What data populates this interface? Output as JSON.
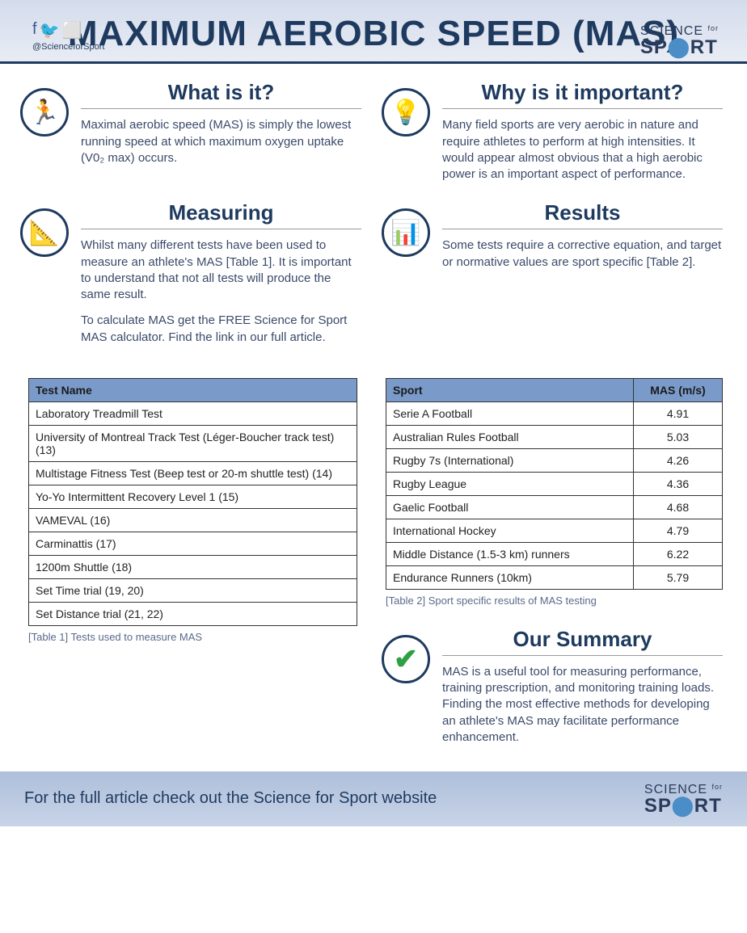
{
  "header": {
    "title": "MAXIMUM AEROBIC SPEED (MAS)",
    "handle": "@ScienceforSport",
    "logo_top": "SCIENCE",
    "logo_for": "for",
    "logo_bottom_1": "SP",
    "logo_bottom_2": "RT"
  },
  "sections": {
    "what": {
      "title": "What is it?",
      "body": "Maximal aerobic speed (MAS) is simply the lowest running speed at which maximum oxygen uptake (V0₂ max) occurs."
    },
    "why": {
      "title": "Why is it important?",
      "body": "Many field sports are very aerobic in nature and require athletes to perform at high intensities. It would appear almost obvious that a high aerobic power is an important aspect of performance."
    },
    "measuring": {
      "title": "Measuring",
      "body1": "Whilst many different tests have been used to measure an athlete's MAS [Table 1]. It is important to understand that not all tests will produce the same result.",
      "body2": "To calculate MAS get the FREE Science for Sport MAS calculator. Find the link in our full article."
    },
    "results": {
      "title": "Results",
      "body": "Some tests require a corrective equation, and target or normative values are sport specific [Table 2]."
    },
    "summary": {
      "title": "Our Summary",
      "body": "MAS is a useful tool for measuring performance, training prescription, and monitoring training loads. Finding the most effective methods for developing an athlete's MAS may facilitate performance enhancement."
    }
  },
  "table1": {
    "header": "Test Name",
    "rows": [
      "Laboratory Treadmill Test",
      "University of Montreal Track Test (Léger-Boucher track test) (13)",
      "Multistage Fitness Test (Beep test or 20-m shuttle test) (14)",
      "Yo-Yo Intermittent Recovery Level 1 (15)",
      "VAMEVAL (16)",
      "Carminattis (17)",
      "1200m Shuttle (18)",
      "Set Time trial (19, 20)",
      "Set Distance trial (21, 22)"
    ],
    "caption": "[Table 1] Tests used to measure MAS"
  },
  "table2": {
    "header_sport": "Sport",
    "header_mas": "MAS (m/s)",
    "rows": [
      {
        "sport": "Serie A Football",
        "mas": "4.91"
      },
      {
        "sport": "Australian Rules Football",
        "mas": "5.03"
      },
      {
        "sport": "Rugby 7s (International)",
        "mas": "4.26"
      },
      {
        "sport": "Rugby League",
        "mas": "4.36"
      },
      {
        "sport": "Gaelic Football",
        "mas": "4.68"
      },
      {
        "sport": "International Hockey",
        "mas": "4.79"
      },
      {
        "sport": "Middle Distance (1.5-3 km) runners",
        "mas": "6.22"
      },
      {
        "sport": "Endurance Runners (10km)",
        "mas": "5.79"
      }
    ],
    "caption": "[Table 2] Sport specific results of MAS testing"
  },
  "footer": {
    "text": "For the full article check out the Science for Sport website"
  },
  "icons": {
    "treadmill": "🏃",
    "question": "💡",
    "ruler": "📐",
    "chart": "📊",
    "check": "✔"
  }
}
